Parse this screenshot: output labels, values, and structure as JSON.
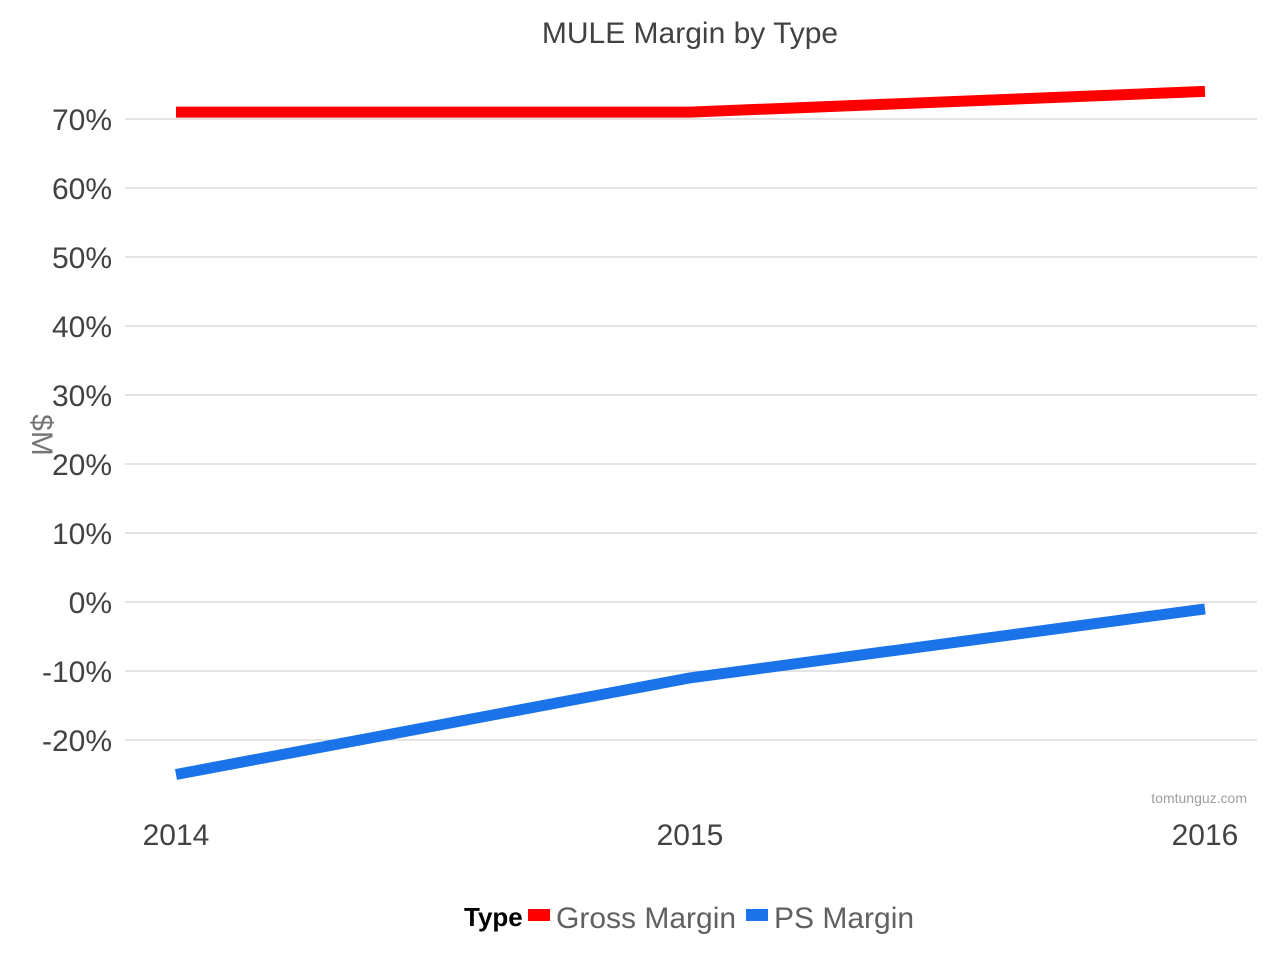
{
  "chart_data": {
    "type": "line",
    "title": "MULE Margin by Type",
    "xlabel": "",
    "ylabel": "$M",
    "x": [
      "2014",
      "2015",
      "2016"
    ],
    "yticks": [
      "70%",
      "60%",
      "50%",
      "40%",
      "30%",
      "20%",
      "10%",
      "0%",
      "-10%",
      "-20%"
    ],
    "ylim": [
      -30,
      75
    ],
    "grid": true,
    "legend_placement": "bottom",
    "legend_title": "Type",
    "series": [
      {
        "name": "Gross Margin",
        "color": "#ff0000",
        "values": [
          71,
          71,
          74
        ]
      },
      {
        "name": "PS Margin",
        "color": "#1a73e8",
        "values": [
          -25,
          -11,
          -1
        ]
      }
    ]
  },
  "watermark": "tomtunguz.com"
}
